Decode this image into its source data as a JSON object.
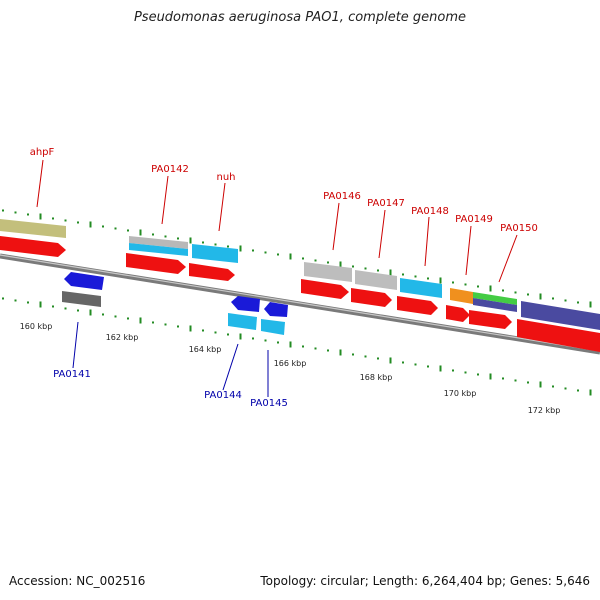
{
  "title": "Pseudomonas aeruginosa PAO1, complete genome",
  "footer": {
    "accession": "Accession: NC_002516",
    "summary": "Topology: circular; Length: 6,264,404 bp; Genes: 5,646"
  },
  "colors": {
    "forward_label": "#cc0000",
    "reverse_label": "#0000aa",
    "dot_green": "#228b22",
    "backbone": "#888888"
  },
  "scale_labels": [
    "160 kbp",
    "162 kbp",
    "164 kbp",
    "166 kbp",
    "168 kbp",
    "170 kbp",
    "172 kbp"
  ],
  "forward_labels": [
    "ahpF",
    "PA0142",
    "nuh",
    "PA0146",
    "PA0147",
    "PA0148",
    "PA0149",
    "PA0150"
  ],
  "reverse_labels": [
    "PA0141",
    "PA0144",
    "PA0145"
  ]
}
